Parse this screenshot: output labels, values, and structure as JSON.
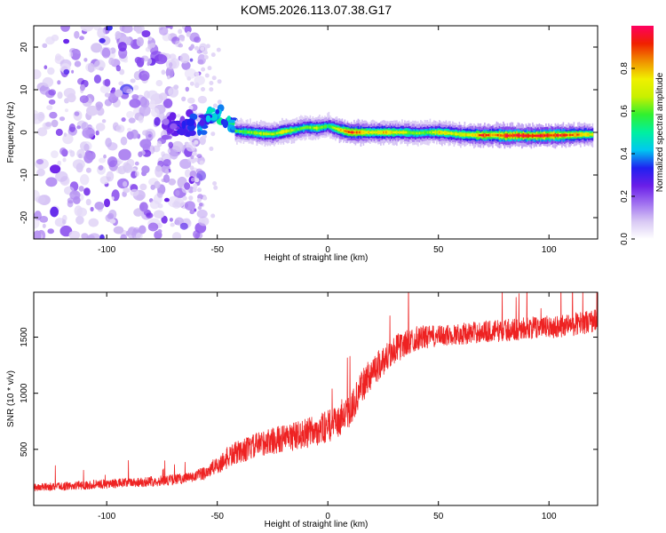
{
  "figure": {
    "title": "KOM5.2026.113.07.38.G17"
  },
  "chart_data": [
    {
      "type": "heatmap",
      "name": "spectrogram",
      "xlabel": "Height of straight line (km)",
      "ylabel": "Frequency (Hz)",
      "xlim": [
        -133,
        122
      ],
      "ylim": [
        -25,
        25
      ],
      "xticks": [
        -100,
        -50,
        0,
        50,
        100
      ],
      "xtick_labels": [
        "-100",
        "-50",
        "0",
        "50",
        "100"
      ],
      "yticks": [
        -20,
        -10,
        0,
        10,
        20
      ],
      "ytick_labels": [
        "-20",
        "-10",
        "0",
        "10",
        "20"
      ],
      "colorbar": {
        "label": "Normalized spectral amplitude",
        "range": [
          0,
          1
        ],
        "ticks": [
          0.0,
          0.2,
          0.4,
          0.6,
          0.8
        ],
        "tick_labels": [
          "0.0",
          "0.2",
          "0.4",
          "0.6",
          "0.8"
        ],
        "colormap": [
          "#ffffff",
          "#d8c8f4",
          "#a070f0",
          "#6a1ee8",
          "#2020f0",
          "#00c8f0",
          "#00f0a0",
          "#30f030",
          "#c8f000",
          "#f0f000",
          "#f09000",
          "#f02000",
          "#ff0060"
        ]
      },
      "noise_region": {
        "x_range": [
          -133,
          -56
        ],
        "y_range": [
          -25,
          25
        ],
        "typical_amplitude": [
          0.05,
          0.25
        ]
      },
      "transition": {
        "x": [
          -74,
          -70,
          -66,
          -62,
          -58,
          -54,
          -50,
          -46,
          -42
        ],
        "y": [
          0.5,
          1.0,
          0.8,
          2.0,
          1.5,
          3.5,
          4.0,
          3.5,
          1.5
        ],
        "amplitude": [
          0.2,
          0.25,
          0.3,
          0.3,
          0.35,
          0.4,
          0.45,
          0.42,
          0.5
        ]
      },
      "ridge": {
        "x": [
          -42,
          -35,
          -30,
          -25,
          -20,
          -15,
          -10,
          -5,
          0,
          5,
          10,
          15,
          20,
          25,
          30,
          35,
          40,
          45,
          50,
          55,
          60,
          65,
          70,
          75,
          80,
          85,
          90,
          95,
          100,
          105,
          110,
          115,
          120
        ],
        "y": [
          0.3,
          0.0,
          -0.3,
          -0.4,
          0.2,
          0.6,
          1.2,
          1.0,
          1.5,
          0.6,
          0.0,
          0.0,
          0.0,
          0.0,
          0.0,
          0.0,
          -0.2,
          0.0,
          0.0,
          -0.2,
          -0.5,
          -0.6,
          -0.7,
          -0.6,
          -0.8,
          -0.7,
          -0.8,
          -0.8,
          -0.7,
          -0.7,
          -0.6,
          -0.5,
          -0.5
        ],
        "amplitude": [
          0.55,
          0.62,
          0.66,
          0.64,
          0.72,
          0.62,
          0.58,
          0.68,
          0.55,
          0.75,
          0.9,
          0.82,
          0.7,
          0.78,
          0.72,
          0.68,
          0.62,
          0.62,
          0.74,
          0.7,
          0.72,
          0.78,
          0.92,
          0.82,
          0.96,
          0.96,
          0.94,
          0.98,
          0.96,
          0.92,
          0.86,
          0.8,
          0.7
        ]
      }
    },
    {
      "type": "line",
      "name": "snr",
      "color": "#ee2222",
      "xlabel": "Height of straight line (km)",
      "ylabel": "SNR (10 * v/v)",
      "xlim": [
        -133,
        122
      ],
      "ylim": [
        0,
        1900
      ],
      "xticks": [
        -100,
        -50,
        0,
        50,
        100
      ],
      "xtick_labels": [
        "-100",
        "-50",
        "0",
        "50",
        "100"
      ],
      "yticks": [
        500,
        1000,
        1500
      ],
      "ytick_labels": [
        "500",
        "1000",
        "1500"
      ],
      "trend": {
        "x": [
          -133,
          -120,
          -100,
          -80,
          -70,
          -60,
          -55,
          -50,
          -45,
          -40,
          -35,
          -30,
          -25,
          -20,
          -15,
          -10,
          -5,
          0,
          5,
          10,
          15,
          20,
          25,
          30,
          40,
          50,
          60,
          70,
          80,
          90,
          100,
          110,
          122
        ],
        "y": [
          150,
          160,
          180,
          200,
          215,
          240,
          280,
          330,
          400,
          450,
          480,
          520,
          540,
          560,
          580,
          600,
          630,
          660,
          700,
          800,
          1000,
          1150,
          1250,
          1350,
          1460,
          1480,
          1500,
          1520,
          1530,
          1550,
          1560,
          1580,
          1620
        ]
      },
      "noise_amplitude": [
        {
          "x": -133,
          "amp": 60
        },
        {
          "x": -60,
          "amp": 90
        },
        {
          "x": -45,
          "amp": 180
        },
        {
          "x": 0,
          "amp": 260
        },
        {
          "x": 20,
          "amp": 260
        },
        {
          "x": 50,
          "amp": 170
        },
        {
          "x": 122,
          "amp": 190
        }
      ]
    }
  ]
}
